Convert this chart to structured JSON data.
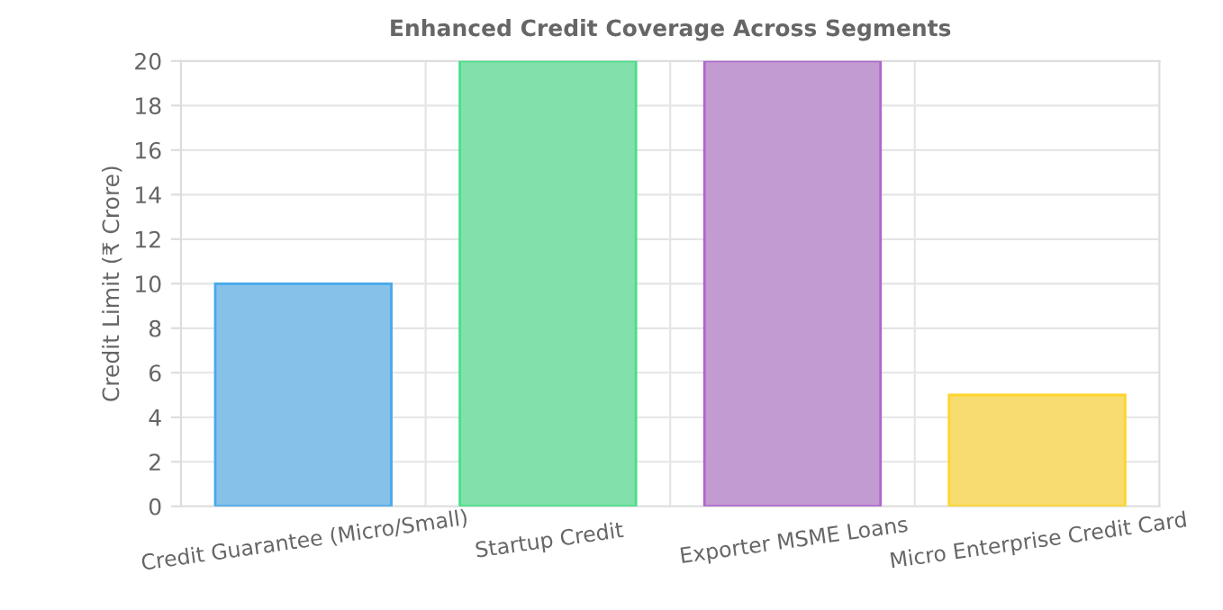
{
  "chart_data": {
    "type": "bar",
    "title": "Enhanced Credit Coverage Across Segments",
    "ylabel": "Credit Limit (₹ Crore)",
    "categories": [
      "Credit Guarantee (Micro/Small)",
      "Startup Credit",
      "Exporter MSME Loans",
      "Micro Enterprise Credit Card"
    ],
    "values": [
      10,
      20,
      20,
      5
    ],
    "colors": [
      "#85c1e9",
      "#82e0aa",
      "#c39bd3",
      "#f7dc6f"
    ],
    "ylim": [
      0,
      20
    ],
    "yticks": [
      0,
      2,
      4,
      6,
      8,
      10,
      12,
      14,
      16,
      18,
      20
    ],
    "grid": true
  }
}
